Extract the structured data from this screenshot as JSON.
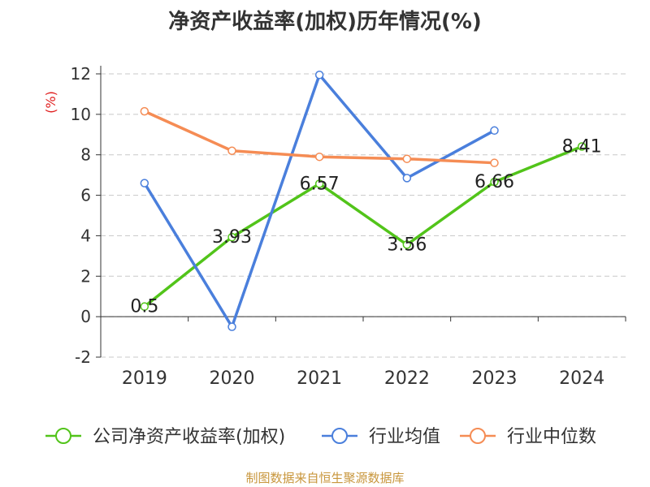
{
  "chart_data": {
    "type": "line",
    "title": "净资产收益率(加权)历年情况(%)",
    "ylabel": "(%)",
    "xlabel": "",
    "categories": [
      "2019",
      "2020",
      "2021",
      "2022",
      "2023",
      "2024"
    ],
    "ylim": [
      -2,
      12
    ],
    "yticks": [
      -2,
      0,
      2,
      4,
      6,
      8,
      10,
      12
    ],
    "grid": true,
    "legend_position": "bottom",
    "series": [
      {
        "name": "公司净资产收益率(加权)",
        "color": "#52c41a",
        "values": [
          0.5,
          3.93,
          6.57,
          3.56,
          6.66,
          8.41
        ],
        "labels": [
          "0.5",
          "3.93",
          "6.57",
          "3.56",
          "6.66",
          "8.41"
        ]
      },
      {
        "name": "行业均值",
        "color": "#4a7fdc",
        "values": [
          6.6,
          -0.5,
          11.95,
          6.85,
          9.2,
          null
        ]
      },
      {
        "name": "行业中位数",
        "color": "#f58c54",
        "values": [
          10.15,
          8.2,
          7.9,
          7.8,
          7.6,
          null
        ]
      }
    ]
  },
  "footer": "制图数据来自恒生聚源数据库"
}
